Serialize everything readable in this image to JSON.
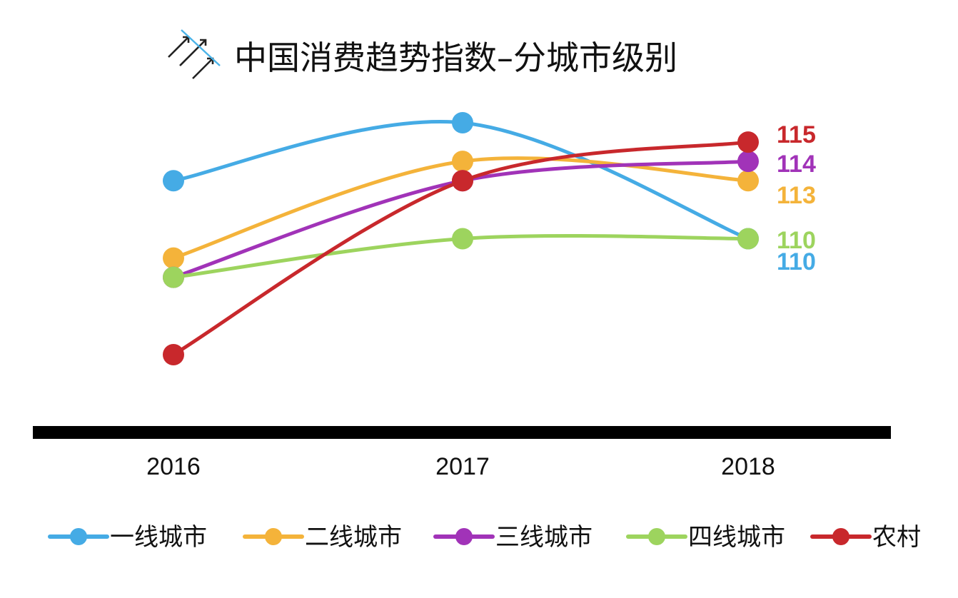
{
  "chart_data": {
    "type": "line",
    "title": "中国消费趋势指数–分城市级别",
    "categories": [
      "2016",
      "2017",
      "2018"
    ],
    "ylim": [
      101,
      118
    ],
    "grid": false,
    "legend_placement": "bottom",
    "series": [
      {
        "name": "一线城市",
        "values": [
          113,
          116,
          110
        ],
        "end_label": "110",
        "color": "#45ABE5"
      },
      {
        "name": "二线城市",
        "values": [
          109,
          114,
          113
        ],
        "end_label": "113",
        "color": "#F4B33A"
      },
      {
        "name": "三线城市",
        "values": [
          108,
          113,
          114
        ],
        "end_label": "114",
        "color": "#A133B8"
      },
      {
        "name": "四线城市",
        "values": [
          108,
          110,
          110
        ],
        "end_label": "110",
        "color": "#9DD45E"
      },
      {
        "name": "农村",
        "values": [
          104,
          113,
          115
        ],
        "end_label": "115",
        "color": "#C8282C"
      }
    ]
  }
}
